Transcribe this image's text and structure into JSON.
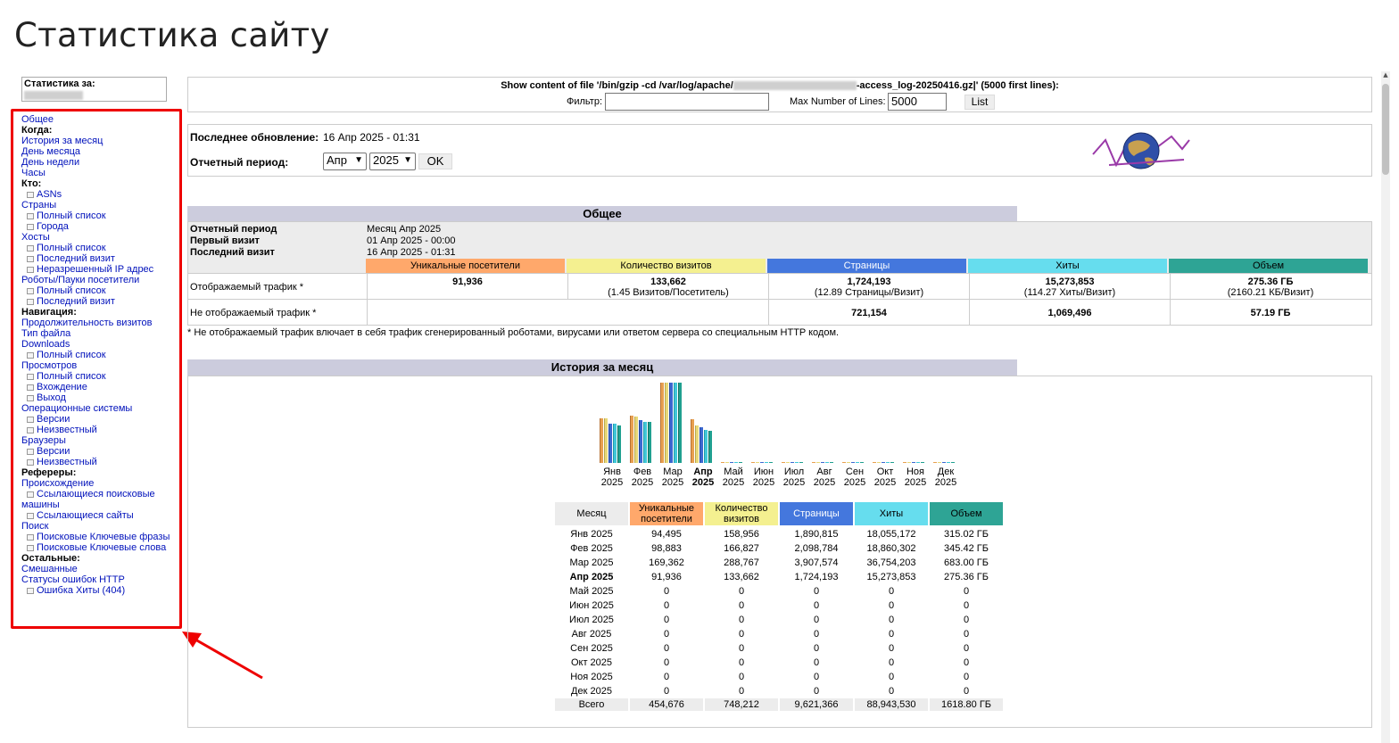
{
  "page": {
    "title": "Статистика сайту"
  },
  "sidebar": {
    "stats_for_label": "Статистика за:",
    "items": [
      {
        "t": "link",
        "label": "Общее"
      },
      {
        "t": "head",
        "label": "Когда:"
      },
      {
        "t": "link",
        "label": "История за месяц"
      },
      {
        "t": "link",
        "label": "День месяца"
      },
      {
        "t": "link",
        "label": "День недели"
      },
      {
        "t": "link",
        "label": "Часы"
      },
      {
        "t": "head",
        "label": "Кто:"
      },
      {
        "t": "sub",
        "label": "ASNs"
      },
      {
        "t": "link",
        "label": "Страны"
      },
      {
        "t": "sub",
        "label": "Полный список"
      },
      {
        "t": "sub",
        "label": "Города"
      },
      {
        "t": "link",
        "label": "Хосты"
      },
      {
        "t": "sub",
        "label": "Полный список"
      },
      {
        "t": "sub",
        "label": "Последний визит"
      },
      {
        "t": "sub",
        "label": "Неразрешенный IP адрес"
      },
      {
        "t": "link",
        "label": "Роботы/Пауки посетители"
      },
      {
        "t": "sub",
        "label": "Полный список"
      },
      {
        "t": "sub",
        "label": "Последний визит"
      },
      {
        "t": "head",
        "label": "Навигация:"
      },
      {
        "t": "link",
        "label": "Продолжительность визитов"
      },
      {
        "t": "link",
        "label": "Тип файла"
      },
      {
        "t": "link",
        "label": "Downloads"
      },
      {
        "t": "sub",
        "label": "Полный список"
      },
      {
        "t": "link",
        "label": "Просмотров"
      },
      {
        "t": "sub",
        "label": "Полный список"
      },
      {
        "t": "sub",
        "label": "Вхождение"
      },
      {
        "t": "sub",
        "label": "Выход"
      },
      {
        "t": "link",
        "label": "Операционные системы"
      },
      {
        "t": "sub",
        "label": "Версии"
      },
      {
        "t": "sub",
        "label": "Неизвестный"
      },
      {
        "t": "link",
        "label": "Браузеры"
      },
      {
        "t": "sub",
        "label": "Версии"
      },
      {
        "t": "sub",
        "label": "Неизвестный"
      },
      {
        "t": "head",
        "label": "Рефереры:"
      },
      {
        "t": "link",
        "label": "Происхождение"
      },
      {
        "t": "sub2",
        "label": "Ссылающиеся поисковые машины"
      },
      {
        "t": "sub",
        "label": "Ссылающиеся сайты"
      },
      {
        "t": "link",
        "label": "Поиск"
      },
      {
        "t": "sub2",
        "label": "Поисковые Ключевые фразы"
      },
      {
        "t": "sub",
        "label": "Поисковые Ключевые слова"
      },
      {
        "t": "head",
        "label": "Остальные:"
      },
      {
        "t": "link",
        "label": "Смешанные"
      },
      {
        "t": "link",
        "label": "Статусы ошибок HTTP"
      },
      {
        "t": "sub",
        "label": "Ошибка Хиты (404)"
      }
    ]
  },
  "file_box": {
    "prefix": "Show content of file '/bin/gzip -cd /var/log/apache/",
    "suffix": "-access_log-20250416.gz|' (5000 first lines):",
    "filter_label": "Фильтр:",
    "filter_value": "",
    "max_lines_label": "Max Number of Lines:",
    "max_lines_value": "5000",
    "list_button": "List"
  },
  "update_box": {
    "last_update_label": "Последнее обновление:",
    "last_update_value": "16 Апр 2025 - 01:31",
    "period_label": "Отчетный период:",
    "month_selected": "Апр",
    "year_selected": "2025",
    "ok_button": "OK"
  },
  "general": {
    "title": "Общее",
    "info": [
      {
        "label": "Отчетный период",
        "value": "Месяц Апр 2025"
      },
      {
        "label": "Первый визит",
        "value": "01 Апр 2025 - 00:00"
      },
      {
        "label": "Последний визит",
        "value": "16 Апр 2025 - 01:31"
      }
    ],
    "columns": [
      "Уникальные посетители",
      "Количество визитов",
      "Страницы",
      "Хиты",
      "Объем"
    ],
    "colors": {
      "unique": "#FFA86B",
      "visits": "#F4F090",
      "pages": "#4477DD",
      "hits": "#66DDEE",
      "bandwidth": "#2EA495"
    },
    "viewed_label": "Отображаемый трафик *",
    "viewed": [
      {
        "main": "91,936",
        "sub": ""
      },
      {
        "main": "133,662",
        "sub": "(1.45 Визитов/Посетитель)"
      },
      {
        "main": "1,724,193",
        "sub": "(12.89 Страницы/Визит)"
      },
      {
        "main": "15,273,853",
        "sub": "(114.27 Хиты/Визит)"
      },
      {
        "main": "275.36 ГБ",
        "sub": "(2160.21 КБ/Визит)"
      }
    ],
    "not_viewed_label": "Не отображаемый трафик *",
    "not_viewed": [
      "721,154",
      "1,069,496",
      "57.19 ГБ"
    ],
    "note": "* Не отображаемый трафик влючает в себя трафик сгенерированный роботами, вирусами или ответом сервера со специальным HTTP кодом."
  },
  "history": {
    "title": "История за месяц",
    "month_col": "Месяц",
    "columns": [
      "Уникальные посетители",
      "Количество визитов",
      "Страницы",
      "Хиты",
      "Объем"
    ],
    "rows": [
      {
        "m": "Янв",
        "y": "2025",
        "u": "94,495",
        "v": "158,956",
        "p": "1,890,815",
        "h": "18,055,172",
        "b": "315.02 ГБ"
      },
      {
        "m": "Фев",
        "y": "2025",
        "u": "98,883",
        "v": "166,827",
        "p": "2,098,784",
        "h": "18,860,302",
        "b": "345.42 ГБ"
      },
      {
        "m": "Мар",
        "y": "2025",
        "u": "169,362",
        "v": "288,767",
        "p": "3,907,574",
        "h": "36,754,203",
        "b": "683.00 ГБ"
      },
      {
        "m": "Апр",
        "y": "2025",
        "u": "91,936",
        "v": "133,662",
        "p": "1,724,193",
        "h": "15,273,853",
        "b": "275.36 ГБ",
        "current": true
      },
      {
        "m": "Май",
        "y": "2025",
        "u": "0",
        "v": "0",
        "p": "0",
        "h": "0",
        "b": "0"
      },
      {
        "m": "Июн",
        "y": "2025",
        "u": "0",
        "v": "0",
        "p": "0",
        "h": "0",
        "b": "0"
      },
      {
        "m": "Июл",
        "y": "2025",
        "u": "0",
        "v": "0",
        "p": "0",
        "h": "0",
        "b": "0"
      },
      {
        "m": "Авг",
        "y": "2025",
        "u": "0",
        "v": "0",
        "p": "0",
        "h": "0",
        "b": "0"
      },
      {
        "m": "Сен",
        "y": "2025",
        "u": "0",
        "v": "0",
        "p": "0",
        "h": "0",
        "b": "0"
      },
      {
        "m": "Окт",
        "y": "2025",
        "u": "0",
        "v": "0",
        "p": "0",
        "h": "0",
        "b": "0"
      },
      {
        "m": "Ноя",
        "y": "2025",
        "u": "0",
        "v": "0",
        "p": "0",
        "h": "0",
        "b": "0"
      },
      {
        "m": "Дек",
        "y": "2025",
        "u": "0",
        "v": "0",
        "p": "0",
        "h": "0",
        "b": "0"
      }
    ],
    "total": {
      "m": "Всего",
      "u": "454,676",
      "v": "748,212",
      "p": "9,621,366",
      "h": "88,943,530",
      "b": "1618.80 ГБ"
    }
  },
  "chart_data": {
    "type": "bar",
    "categories": [
      "Янв 2025",
      "Фев 2025",
      "Мар 2025",
      "Апр 2025",
      "Май 2025",
      "Июн 2025",
      "Июл 2025",
      "Авг 2025",
      "Сен 2025",
      "Окт 2025",
      "Ноя 2025",
      "Дек 2025"
    ],
    "series": [
      {
        "values": [
          94495,
          98883,
          169362,
          91936,
          0,
          0,
          0,
          0,
          0,
          0,
          0,
          0
        ]
      },
      {
        "values": [
          158956,
          166827,
          288767,
          133662,
          0,
          0,
          0,
          0,
          0,
          0,
          0,
          0
        ]
      },
      {
        "values": [
          1890815,
          2098784,
          3907574,
          1724193,
          0,
          0,
          0,
          0,
          0,
          0,
          0,
          0
        ]
      },
      {
        "values": [
          18055172,
          18860302,
          36754203,
          15273853,
          0,
          0,
          0,
          0,
          0,
          0,
          0,
          0
        ]
      },
      {
        "values": [
          315.02,
          345.42,
          683.0,
          275.36,
          0,
          0,
          0,
          0,
          0,
          0,
          0,
          0
        ]
      }
    ],
    "title": "",
    "xlabel": "",
    "ylabel": ""
  }
}
